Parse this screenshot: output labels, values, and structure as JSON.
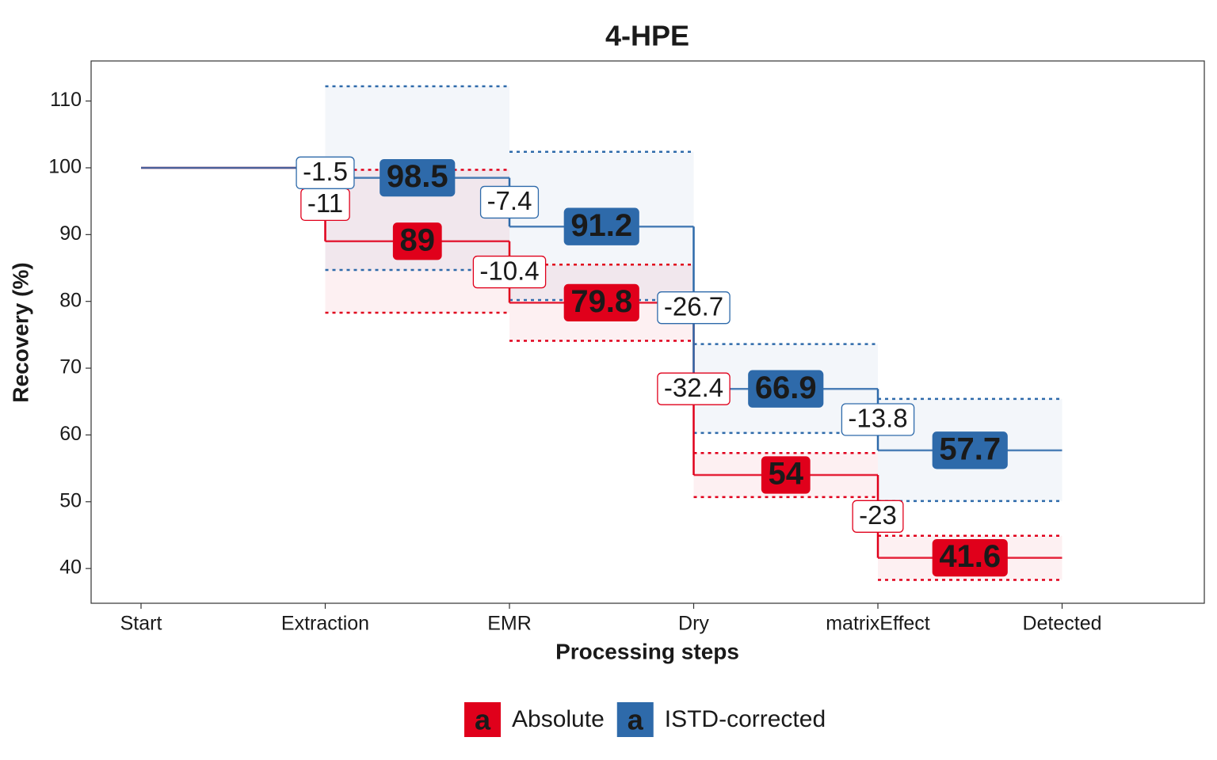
{
  "chart_data": {
    "type": "step",
    "title": "4-HPE",
    "x_label": "Processing steps",
    "y_label": "Recovery (%)",
    "categories": [
      "Start",
      "Extraction",
      "EMR",
      "Dry",
      "matrixEffect",
      "Detected"
    ],
    "ylim": [
      34.8,
      116
    ],
    "yticks": [
      40,
      50,
      60,
      70,
      80,
      90,
      100,
      110
    ],
    "legend": "bottom",
    "grid": false,
    "series": [
      {
        "name": "Absolute",
        "color": "#e0001b",
        "values": [
          100,
          89,
          79.8,
          54,
          41.6,
          null
        ],
        "changes": [
          null,
          -11,
          -10.4,
          -32.4,
          -23,
          null
        ],
        "lower": [
          null,
          78.3,
          74.1,
          50.7,
          38.3,
          null
        ],
        "upper": [
          null,
          99.7,
          85.5,
          57.3,
          44.9,
          null
        ]
      },
      {
        "name": "ISTD-corrected",
        "color": "#2e6aaa",
        "values": [
          100,
          98.5,
          91.2,
          66.9,
          57.7,
          null
        ],
        "changes": [
          null,
          -1.5,
          -7.4,
          -26.7,
          -13.8,
          null
        ],
        "lower": [
          null,
          84.7,
          80.2,
          60.3,
          50.1,
          null
        ],
        "upper": [
          null,
          112.2,
          102.4,
          73.6,
          65.4,
          null
        ]
      }
    ]
  }
}
